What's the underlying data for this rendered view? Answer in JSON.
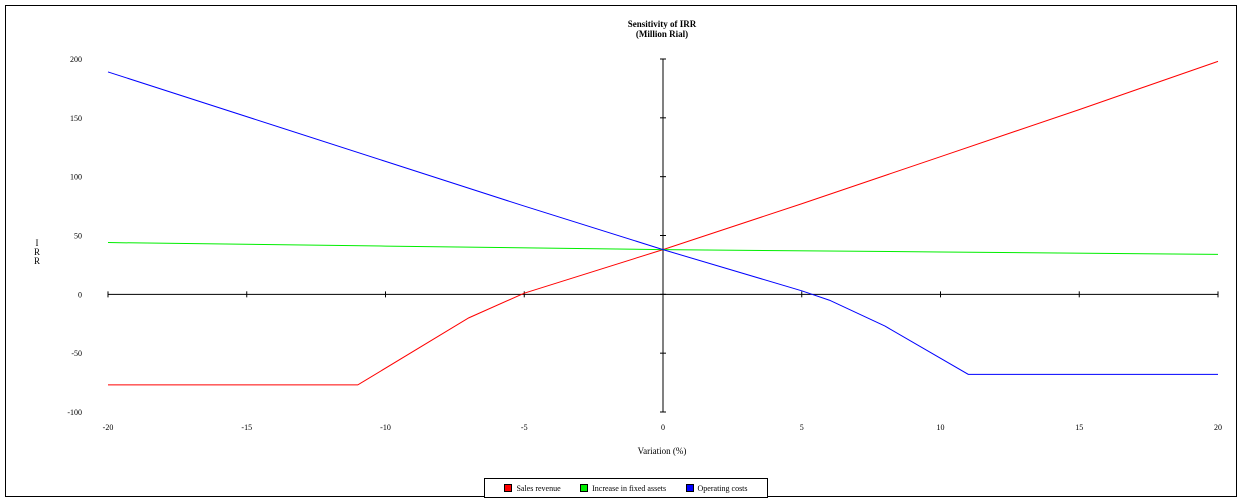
{
  "chart_data": {
    "type": "line",
    "title": "Sensitivity of IRR",
    "subtitle": "(Million Rial)",
    "xlabel": "Variation (%)",
    "ylabel": "I R R",
    "xlim": [
      -20,
      20
    ],
    "ylim": [
      -100,
      200
    ],
    "x_ticks": [
      -20,
      -15,
      -10,
      -5,
      0,
      5,
      10,
      15,
      20
    ],
    "y_ticks": [
      200,
      150,
      100,
      50,
      0,
      -50,
      -100
    ],
    "grid": false,
    "legend_position": "bottom",
    "series": [
      {
        "name": "Sales revenue",
        "color": "#ff0000",
        "x": [
          -20,
          -11,
          -7,
          -5,
          0,
          5,
          10,
          15,
          20
        ],
        "y": [
          -77,
          -77,
          -20,
          1,
          38,
          77,
          117,
          157,
          198
        ]
      },
      {
        "name": "Increase in fixed assets",
        "color": "#00ee00",
        "x": [
          -20,
          -10,
          0,
          10,
          20
        ],
        "y": [
          44,
          41,
          38,
          36,
          34
        ]
      },
      {
        "name": "Operating costs",
        "color": "#0000ff",
        "x": [
          -20,
          -10,
          -5,
          0,
          5,
          6,
          8,
          11,
          15,
          20
        ],
        "y": [
          189,
          113,
          75,
          38,
          3,
          -5,
          -27,
          -68,
          -68,
          -68
        ]
      }
    ]
  }
}
